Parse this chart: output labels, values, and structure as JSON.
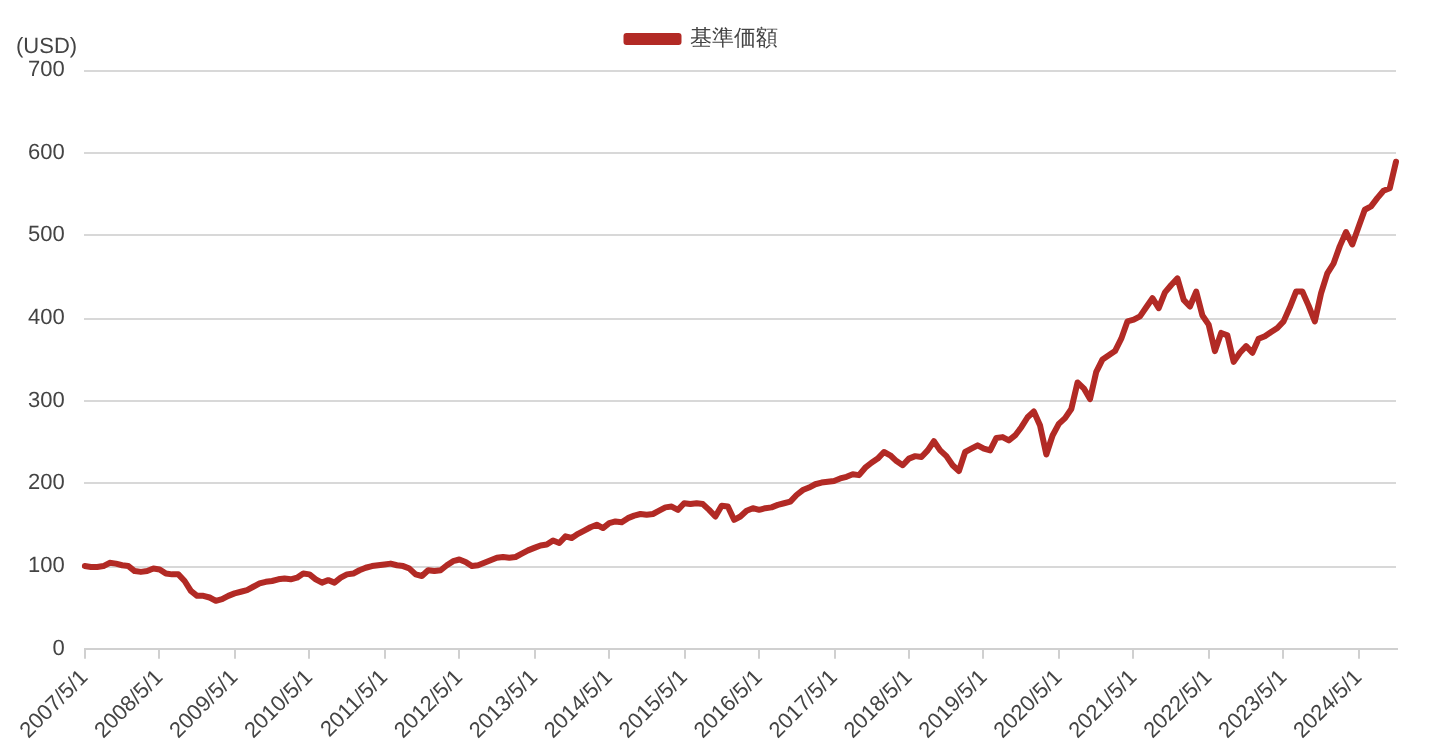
{
  "chart_data": {
    "type": "line",
    "ylabel": "(USD)",
    "legend": "top",
    "grid": "y",
    "marker": "none",
    "line_style": "solid",
    "ylim": [
      0,
      700
    ],
    "yticks": [
      0,
      100,
      200,
      300,
      400,
      500,
      600,
      700
    ],
    "categories": [
      "2007/5/1",
      null,
      null,
      null,
      null,
      null,
      null,
      null,
      null,
      null,
      null,
      null,
      "2008/5/1",
      null,
      null,
      null,
      null,
      null,
      null,
      null,
      null,
      null,
      null,
      null,
      "2009/5/1",
      null,
      null,
      null,
      null,
      null,
      null,
      null,
      null,
      null,
      null,
      null,
      "2010/5/1",
      null,
      null,
      null,
      null,
      null,
      null,
      null,
      null,
      null,
      null,
      null,
      "2011/5/1",
      null,
      null,
      null,
      null,
      null,
      null,
      null,
      null,
      null,
      null,
      null,
      "2012/5/1",
      null,
      null,
      null,
      null,
      null,
      null,
      null,
      null,
      null,
      null,
      null,
      "2013/5/1",
      null,
      null,
      null,
      null,
      null,
      null,
      null,
      null,
      null,
      null,
      null,
      "2014/5/1",
      null,
      null,
      null,
      null,
      null,
      null,
      null,
      null,
      null,
      null,
      null,
      "2015/5/1",
      null,
      null,
      null,
      null,
      null,
      null,
      null,
      null,
      null,
      null,
      null,
      "2016/5/1",
      null,
      null,
      null,
      null,
      null,
      null,
      null,
      null,
      null,
      null,
      null,
      "2017/5/1",
      null,
      null,
      null,
      null,
      null,
      null,
      null,
      null,
      null,
      null,
      null,
      "2018/5/1",
      null,
      null,
      null,
      null,
      null,
      null,
      null,
      null,
      null,
      null,
      null,
      "2019/5/1",
      null,
      null,
      null,
      null,
      null,
      null,
      null,
      null,
      null,
      null,
      null,
      "2020/5/1",
      null,
      null,
      null,
      null,
      null,
      null,
      null,
      null,
      null,
      null,
      null,
      "2021/5/1",
      null,
      null,
      null,
      null,
      null,
      null,
      null,
      null,
      null,
      null,
      null,
      "2022/5/1",
      null,
      null,
      null,
      null,
      null,
      null,
      null,
      null,
      null,
      null,
      null,
      "2023/5/1",
      null,
      null,
      null,
      null,
      null,
      null,
      null,
      null,
      null,
      null,
      null,
      "2024/5/1",
      null,
      null,
      null,
      null,
      null,
      null
    ],
    "series": [
      {
        "name": "基準価額",
        "color": "#b22a25",
        "values": [
          100,
          99,
          99,
          100,
          104,
          103,
          101,
          100,
          94,
          93,
          94,
          97,
          96,
          91,
          90,
          90,
          82,
          70,
          64,
          64,
          62,
          58,
          60,
          64,
          67,
          69,
          71,
          75,
          79,
          81,
          82,
          84,
          85,
          84,
          86,
          91,
          90,
          84,
          80,
          83,
          80,
          86,
          90,
          91,
          95,
          98,
          100,
          101,
          102,
          103,
          101,
          100,
          97,
          90,
          88,
          95,
          94,
          95,
          101,
          106,
          108,
          105,
          100,
          101,
          104,
          107,
          110,
          111,
          110,
          111,
          115,
          119,
          122,
          125,
          126,
          131,
          128,
          136,
          134,
          139,
          143,
          147,
          150,
          146,
          152,
          154,
          153,
          158,
          161,
          163,
          162,
          163,
          167,
          171,
          172,
          168,
          176,
          175,
          176,
          175,
          168,
          160,
          173,
          172,
          156,
          160,
          167,
          170,
          168,
          170,
          171,
          174,
          176,
          178,
          186,
          192,
          195,
          199,
          201,
          202,
          203,
          206,
          208,
          211,
          210,
          219,
          225,
          230,
          238,
          234,
          227,
          222,
          230,
          233,
          232,
          240,
          251,
          240,
          233,
          222,
          215,
          238,
          242,
          246,
          242,
          240,
          255,
          256,
          252,
          258,
          268,
          280,
          287,
          270,
          235,
          258,
          272,
          279,
          290,
          322,
          315,
          302,
          335,
          350,
          355,
          360,
          375,
          396,
          398,
          402,
          413,
          424,
          412,
          431,
          440,
          448,
          422,
          414,
          432,
          403,
          392,
          360,
          382,
          379,
          347,
          358,
          366,
          358,
          375,
          378,
          383,
          388,
          396,
          413,
          432,
          432,
          415,
          396,
          430,
          454,
          466,
          487,
          504,
          489,
          510,
          531,
          535,
          545,
          554,
          557,
          589
        ]
      }
    ]
  }
}
